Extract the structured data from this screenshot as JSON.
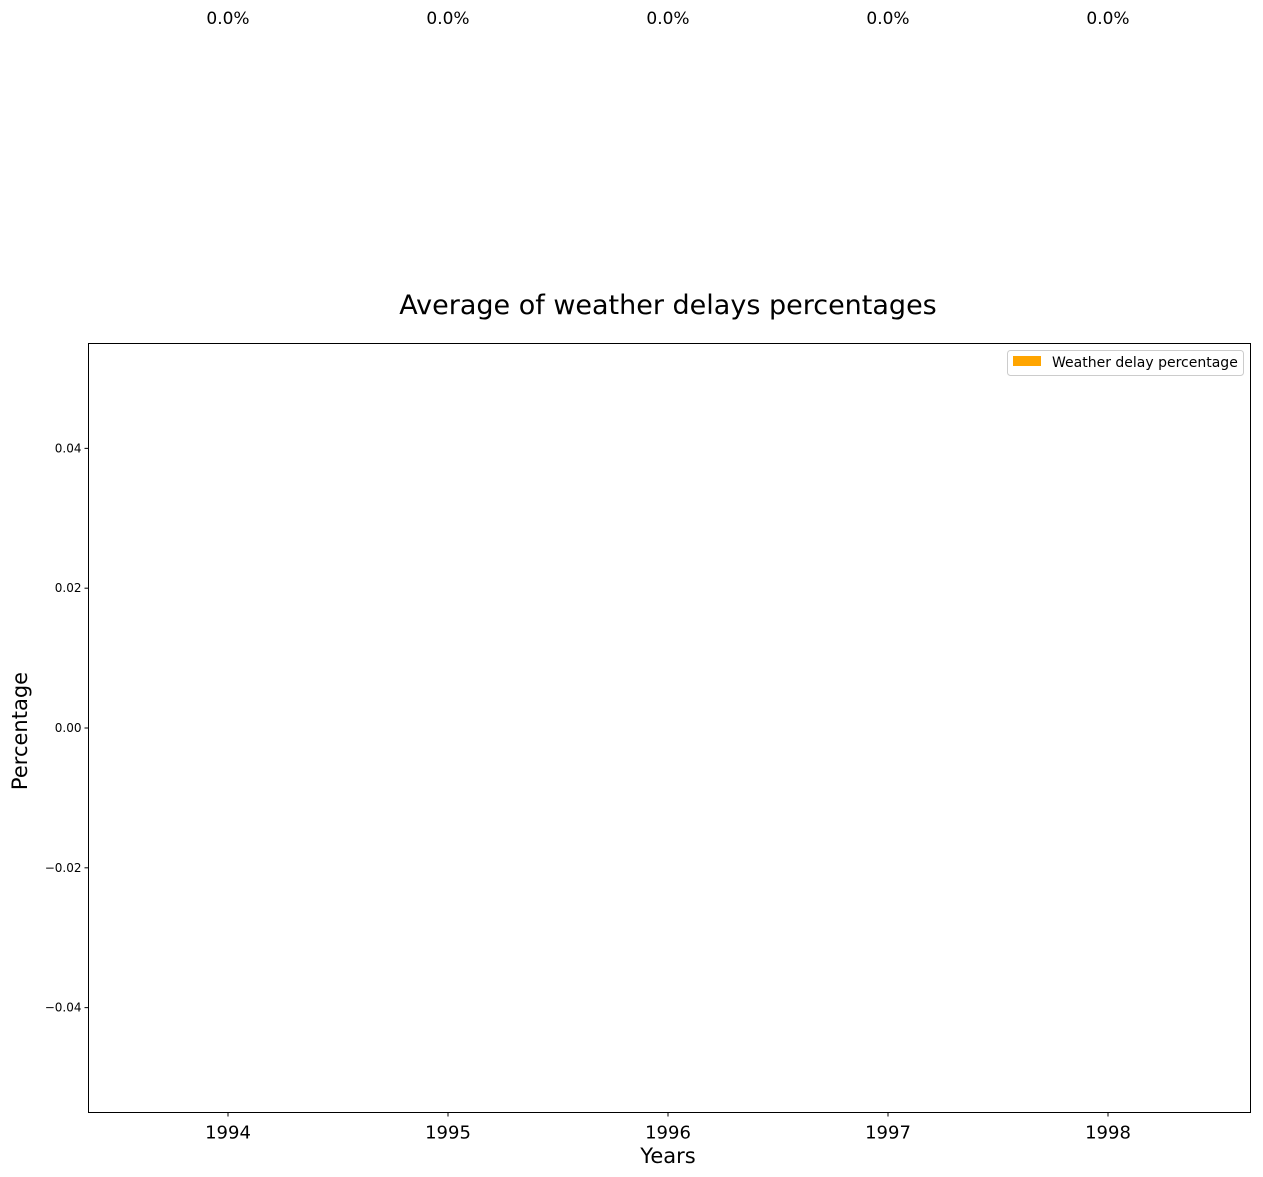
{
  "chart_data": {
    "type": "bar",
    "title": "Average of weather delays percentages",
    "xlabel": "Years",
    "ylabel": "Percentage",
    "categories": [
      "1994",
      "1995",
      "1996",
      "1997",
      "1998"
    ],
    "series": [
      {
        "name": "Weather delay percentage",
        "values": [
          0.0,
          0.0,
          0.0,
          0.0,
          0.0
        ],
        "color": "#FFA500"
      }
    ],
    "data_labels": [
      "0.0%",
      "0.0%",
      "0.0%",
      "0.0%",
      "0.0%"
    ],
    "ylim": [
      -0.055,
      0.055
    ],
    "yticks": [
      -0.04,
      -0.02,
      0.0,
      0.02,
      0.04
    ],
    "ytick_labels": [
      "−0.04",
      "−0.02",
      "0.00",
      "0.02",
      "0.04"
    ],
    "grid": false,
    "legend_position": "top-right"
  }
}
